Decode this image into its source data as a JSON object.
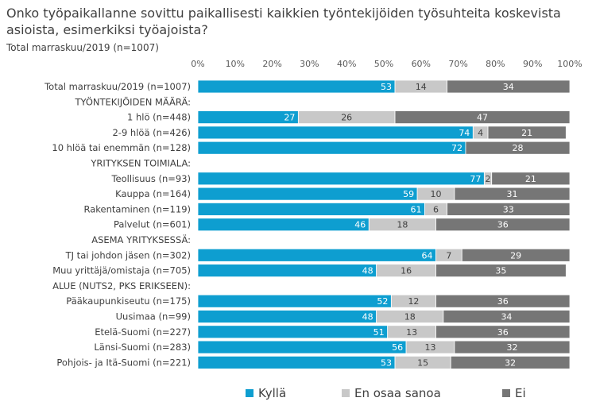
{
  "title": "Onko työpaikallanne sovittu paikallisesti kaikkien työntekijöiden työsuhteita koskevista asioista, esimerkiksi työajoista?",
  "subtitle": "Total marraskuu/2019 (n=1007)",
  "colors": {
    "kylla": "#0e9ed0",
    "en_osaa": "#c8c8c8",
    "ei": "#767676",
    "label_light": "#ffffff",
    "label_dark": "#404040"
  },
  "chart_data": {
    "type": "bar",
    "orientation": "horizontal",
    "stacked": true,
    "xlim": [
      0,
      100
    ],
    "x_ticks": [
      "0%",
      "10%",
      "20%",
      "30%",
      "40%",
      "50%",
      "60%",
      "70%",
      "80%",
      "90%",
      "100%"
    ],
    "grid": false,
    "legend_position": "bottom",
    "series_names": [
      "Kyllä",
      "En osaa sanoa",
      "Ei"
    ],
    "rows": [
      {
        "label": "Total marraskuu/2019 (n=1007)",
        "values": [
          53,
          14,
          34
        ]
      },
      {
        "label": "TYÖNTEKIJÖIDEN MÄÄRÄ:",
        "values": null
      },
      {
        "label": "1 hlö (n=448)",
        "values": [
          27,
          26,
          47
        ]
      },
      {
        "label": "2-9 hlöä (n=426)",
        "values": [
          74,
          4,
          21
        ]
      },
      {
        "label": "10 hlöä tai enemmän (n=128)",
        "values": [
          72,
          null,
          28
        ]
      },
      {
        "label": "YRITYKSEN TOIMIALA:",
        "values": null
      },
      {
        "label": "Teollisuus (n=93)",
        "values": [
          77,
          2,
          21
        ]
      },
      {
        "label": "Kauppa (n=164)",
        "values": [
          59,
          10,
          31
        ]
      },
      {
        "label": "Rakentaminen (n=119)",
        "values": [
          61,
          6,
          33
        ]
      },
      {
        "label": "Palvelut (n=601)",
        "values": [
          46,
          18,
          36
        ]
      },
      {
        "label": "ASEMA YRITYKSESSÄ:",
        "values": null
      },
      {
        "label": "TJ tai johdon jäsen (n=302)",
        "values": [
          64,
          7,
          29
        ]
      },
      {
        "label": "Muu yrittäjä/omistaja (n=705)",
        "values": [
          48,
          16,
          35
        ]
      },
      {
        "label": "ALUE (NUTS2, PKS ERIKSEEN):",
        "values": null
      },
      {
        "label": "Pääkaupunkiseutu (n=175)",
        "values": [
          52,
          12,
          36
        ]
      },
      {
        "label": "Uusimaa (n=99)",
        "values": [
          48,
          18,
          34
        ]
      },
      {
        "label": "Etelä-Suomi (n=227)",
        "values": [
          51,
          13,
          36
        ]
      },
      {
        "label": "Länsi-Suomi (n=283)",
        "values": [
          56,
          13,
          32
        ]
      },
      {
        "label": "Pohjois- ja Itä-Suomi (n=221)",
        "values": [
          53,
          15,
          32
        ]
      }
    ]
  }
}
